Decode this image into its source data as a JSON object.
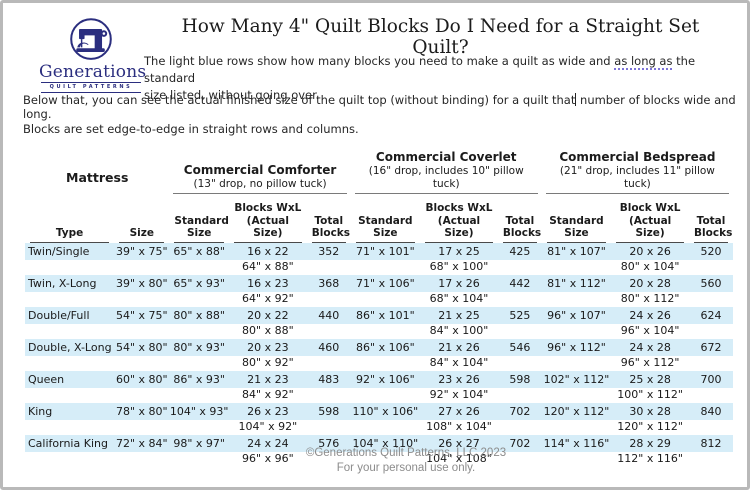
{
  "page_title": "How Many 4\" Quilt Blocks Do I Need for a Straight Set Quilt?",
  "logo": {
    "icon": "sewing-machine-icon",
    "name": "Generations",
    "subtext": "QUILT PATTERNS",
    "brand_color": "#2b2e7f"
  },
  "intro1": {
    "before": "The light blue rows show how many blocks you need to make a quilt as wide and ",
    "underlined": "as long as",
    "after": " the standard",
    "line2": "size listed, without going over."
  },
  "intro2": {
    "before": "Below that, you can see the actual finished size of the quilt top (without binding) for a quilt that",
    "after": " number of blocks wide and long."
  },
  "intro3": "Blocks are set edge-to-edge in straight rows and columns.",
  "table": {
    "row_highlight_color": "#d6edf8",
    "groups": [
      {
        "label": "Mattress",
        "sub": ""
      },
      {
        "label": "Commercial Comforter",
        "sub": "(13\" drop, no pillow tuck)"
      },
      {
        "label": "Commercial Coverlet",
        "sub": "(16\" drop, includes 10\" pillow tuck)"
      },
      {
        "label": "Commercial Bedspread",
        "sub": "(21\" drop, includes 11\" pillow tuck)"
      }
    ],
    "columns": [
      {
        "key": "type",
        "lines": [
          "Type"
        ]
      },
      {
        "key": "size",
        "lines": [
          "Size"
        ]
      },
      {
        "key": "comforter-standard-size",
        "lines": [
          "Standard",
          "Size"
        ]
      },
      {
        "key": "comforter-blocks",
        "lines": [
          "Blocks WxL",
          "(Actual Size)"
        ]
      },
      {
        "key": "comforter-total-blocks",
        "lines": [
          "Total",
          "Blocks"
        ]
      },
      {
        "key": "coverlet-standard-size",
        "lines": [
          "Standard",
          "Size"
        ]
      },
      {
        "key": "coverlet-blocks",
        "lines": [
          "Blocks WxL",
          "(Actual Size)"
        ]
      },
      {
        "key": "coverlet-total-blocks",
        "lines": [
          "Total",
          "Blocks"
        ]
      },
      {
        "key": "bedspread-standard-size",
        "lines": [
          "Standard",
          "Size"
        ]
      },
      {
        "key": "bedspread-blocks",
        "lines": [
          "Block WxL",
          "(Actual Size)"
        ]
      },
      {
        "key": "bedspread-total-blocks",
        "lines": [
          "Total",
          "Blocks"
        ]
      }
    ],
    "rows": [
      {
        "type": "Twin/Single",
        "size": "39\" x 75\"",
        "comforter": {
          "standard": "65\" x 88\"",
          "blocks": "16 x 22",
          "actual": "64\" x 88\"",
          "total": "352"
        },
        "coverlet": {
          "standard": "71\" x 101\"",
          "blocks": "17 x 25",
          "actual": "68\" x 100\"",
          "total": "425"
        },
        "bedspread": {
          "standard": "81\" x 107\"",
          "blocks": "20 x 26",
          "actual": "80\" x 104\"",
          "total": "520"
        }
      },
      {
        "type": "Twin, X-Long",
        "size": "39\" x 80\"",
        "comforter": {
          "standard": "65\" x 93\"",
          "blocks": "16 x 23",
          "actual": "64\" x 92\"",
          "total": "368"
        },
        "coverlet": {
          "standard": "71\" x 106\"",
          "blocks": "17 x 26",
          "actual": "68\" x 104\"",
          "total": "442"
        },
        "bedspread": {
          "standard": "81\" x 112\"",
          "blocks": "20 x 28",
          "actual": "80\" x 112\"",
          "total": "560"
        }
      },
      {
        "type": "Double/Full",
        "size": "54\" x 75\"",
        "comforter": {
          "standard": "80\" x 88\"",
          "blocks": "20 x 22",
          "actual": "80\" x 88\"",
          "total": "440"
        },
        "coverlet": {
          "standard": "86\" x 101\"",
          "blocks": "21 x 25",
          "actual": "84\" x 100\"",
          "total": "525"
        },
        "bedspread": {
          "standard": "96\" x 107\"",
          "blocks": "24 x 26",
          "actual": "96\" x 104\"",
          "total": "624"
        }
      },
      {
        "type": "Double, X-Long",
        "size": "54\" x 80\"",
        "comforter": {
          "standard": "80\" x 93\"",
          "blocks": "20 x 23",
          "actual": "80\" x 92\"",
          "total": "460"
        },
        "coverlet": {
          "standard": "86\" x 106\"",
          "blocks": "21 x 26",
          "actual": "84\" x 104\"",
          "total": "546"
        },
        "bedspread": {
          "standard": "96\" x 112\"",
          "blocks": "24 x 28",
          "actual": "96\" x 112\"",
          "total": "672"
        }
      },
      {
        "type": "Queen",
        "size": "60\" x 80\"",
        "comforter": {
          "standard": "86\" x 93\"",
          "blocks": "21 x 23",
          "actual": "84\" x 92\"",
          "total": "483"
        },
        "coverlet": {
          "standard": "92\" x 106\"",
          "blocks": "23 x 26",
          "actual": "92\" x 104\"",
          "total": "598"
        },
        "bedspread": {
          "standard": "102\" x 112\"",
          "blocks": "25 x 28",
          "actual": "100\" x 112\"",
          "total": "700"
        }
      },
      {
        "type": "King",
        "size": "78\" x 80\"",
        "comforter": {
          "standard": "104\" x 93\"",
          "blocks": "26 x 23",
          "actual": "104\" x 92\"",
          "total": "598"
        },
        "coverlet": {
          "standard": "110\" x 106\"",
          "blocks": "27 x 26",
          "actual": "108\" x 104\"",
          "total": "702"
        },
        "bedspread": {
          "standard": "120\" x 112\"",
          "blocks": "30 x 28",
          "actual": "120\" x 112\"",
          "total": "840"
        }
      },
      {
        "type": "California King",
        "size": "72\" x 84\"",
        "comforter": {
          "standard": "98\" x 97\"",
          "blocks": "24 x 24",
          "actual": "96\" x 96\"",
          "total": "576"
        },
        "coverlet": {
          "standard": "104\" x 110\"",
          "blocks": "26 x 27",
          "actual": "104\" x 108\"",
          "total": "702"
        },
        "bedspread": {
          "standard": "114\" x 116\"",
          "blocks": "28 x 29",
          "actual": "112\" x 116\"",
          "total": "812"
        }
      }
    ]
  },
  "footer": {
    "line1": "©Generations Quilt Patterns, LLC 2023",
    "line2": "For your personal use only.",
    "text_color": "#8c8c8c"
  }
}
